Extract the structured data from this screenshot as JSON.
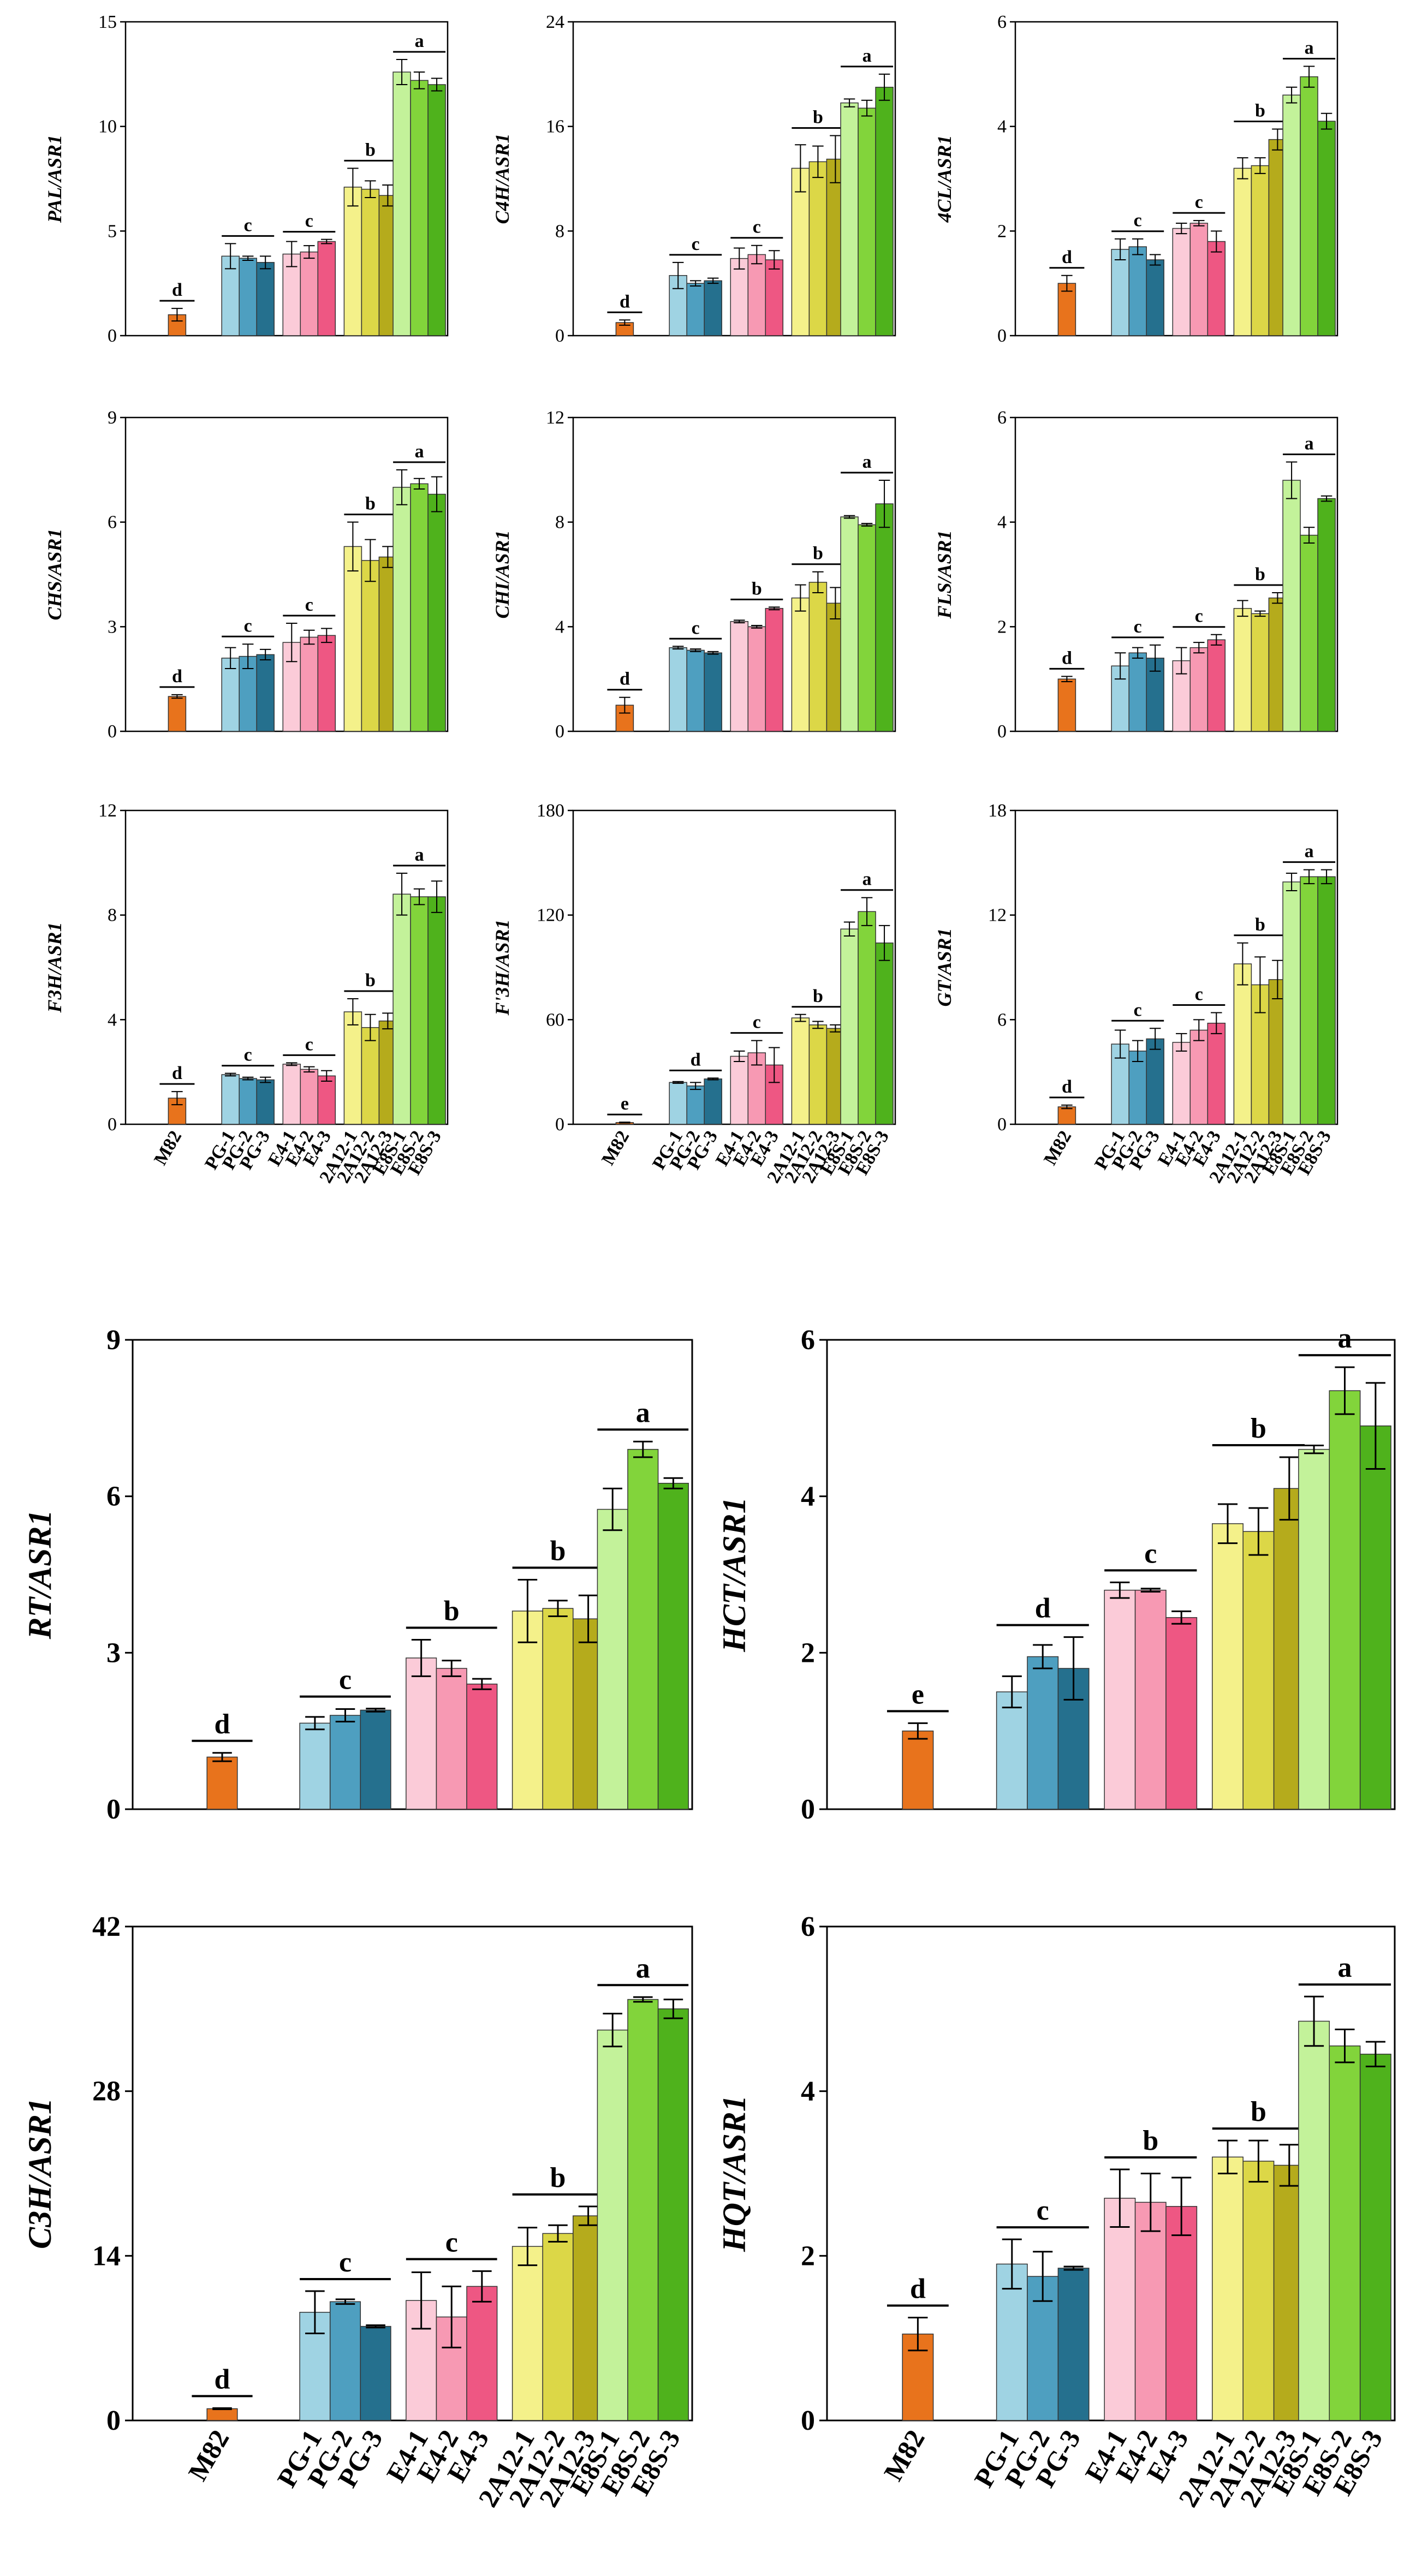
{
  "figure": {
    "groups": [
      {
        "name": "M82",
        "bars": [
          "M82"
        ],
        "colors": [
          "#e8731c"
        ]
      },
      {
        "name": "PG",
        "bars": [
          "PG-1",
          "PG-2",
          "PG-3"
        ],
        "colors": [
          "#9fd3e3",
          "#4e9fc0",
          "#25708e"
        ]
      },
      {
        "name": "E4",
        "bars": [
          "E4-1",
          "E4-2",
          "E4-3"
        ],
        "colors": [
          "#fbcbd8",
          "#f799b3",
          "#ee5783"
        ]
      },
      {
        "name": "2A12",
        "bars": [
          "2A12-1",
          "2A12-2",
          "2A12-3"
        ],
        "colors": [
          "#f4f18a",
          "#dcd747",
          "#b5ab1c"
        ]
      },
      {
        "name": "E8S",
        "bars": [
          "E8S-1",
          "E8S-2",
          "E8S-3"
        ],
        "colors": [
          "#c3f29a",
          "#82d43b",
          "#4fb21c"
        ]
      }
    ]
  },
  "chart_data": [
    {
      "type": "bar",
      "ylabel": "PAL/ASR1",
      "ylim": [
        0,
        15
      ],
      "yticks": [
        0,
        5,
        10,
        15
      ],
      "series": [
        {
          "name": "M82",
          "values": [
            1.0
          ],
          "errors": [
            0.3
          ],
          "letter": "d"
        },
        {
          "name": "PG",
          "values": [
            3.8,
            3.7,
            3.5
          ],
          "errors": [
            0.6,
            0.1,
            0.3
          ],
          "letter": "c"
        },
        {
          "name": "E4",
          "values": [
            3.9,
            4.0,
            4.5
          ],
          "errors": [
            0.6,
            0.3,
            0.1
          ],
          "letter": "c"
        },
        {
          "name": "2A12",
          "values": [
            7.1,
            7.0,
            6.7
          ],
          "errors": [
            0.9,
            0.4,
            0.5
          ],
          "letter": "b"
        },
        {
          "name": "E8S",
          "values": [
            12.6,
            12.2,
            12.0
          ],
          "errors": [
            0.6,
            0.4,
            0.3
          ],
          "letter": "a"
        }
      ]
    },
    {
      "type": "bar",
      "ylabel": "C4H/ASR1",
      "ylim": [
        0,
        24
      ],
      "yticks": [
        0,
        8,
        16,
        24
      ],
      "series": [
        {
          "name": "M82",
          "values": [
            1.0
          ],
          "errors": [
            0.2
          ],
          "letter": "d"
        },
        {
          "name": "PG",
          "values": [
            4.6,
            4.0,
            4.2
          ],
          "errors": [
            1.0,
            0.2,
            0.2
          ],
          "letter": "c"
        },
        {
          "name": "E4",
          "values": [
            5.9,
            6.2,
            5.8
          ],
          "errors": [
            0.8,
            0.7,
            0.7
          ],
          "letter": "c"
        },
        {
          "name": "2A12",
          "values": [
            12.8,
            13.3,
            13.5
          ],
          "errors": [
            1.8,
            1.2,
            1.8
          ],
          "letter": "b"
        },
        {
          "name": "E8S",
          "values": [
            17.8,
            17.4,
            19.0
          ],
          "errors": [
            0.3,
            0.6,
            1.0
          ],
          "letter": "a"
        }
      ]
    },
    {
      "type": "bar",
      "ylabel": "4CL/ASR1",
      "ylim": [
        0,
        6
      ],
      "yticks": [
        0,
        2,
        4,
        6
      ],
      "series": [
        {
          "name": "M82",
          "values": [
            1.0
          ],
          "errors": [
            0.15
          ],
          "letter": "d"
        },
        {
          "name": "PG",
          "values": [
            1.65,
            1.7,
            1.45
          ],
          "errors": [
            0.2,
            0.15,
            0.1
          ],
          "letter": "c"
        },
        {
          "name": "E4",
          "values": [
            2.05,
            2.15,
            1.8
          ],
          "errors": [
            0.1,
            0.05,
            0.2
          ],
          "letter": "c"
        },
        {
          "name": "2A12",
          "values": [
            3.2,
            3.25,
            3.75
          ],
          "errors": [
            0.2,
            0.15,
            0.2
          ],
          "letter": "b"
        },
        {
          "name": "E8S",
          "values": [
            4.6,
            4.95,
            4.1
          ],
          "errors": [
            0.15,
            0.2,
            0.15
          ],
          "letter": "a"
        }
      ]
    },
    {
      "type": "bar",
      "ylabel": "CHS/ASR1",
      "ylim": [
        0,
        9
      ],
      "yticks": [
        0,
        3,
        6,
        9
      ],
      "series": [
        {
          "name": "M82",
          "values": [
            1.0
          ],
          "errors": [
            0.05
          ],
          "letter": "d"
        },
        {
          "name": "PG",
          "values": [
            2.1,
            2.15,
            2.2
          ],
          "errors": [
            0.3,
            0.35,
            0.15
          ],
          "letter": "c"
        },
        {
          "name": "E4",
          "values": [
            2.55,
            2.7,
            2.75
          ],
          "errors": [
            0.55,
            0.2,
            0.2
          ],
          "letter": "c"
        },
        {
          "name": "2A12",
          "values": [
            5.3,
            4.9,
            5.0
          ],
          "errors": [
            0.7,
            0.6,
            0.3
          ],
          "letter": "b"
        },
        {
          "name": "E8S",
          "values": [
            7.0,
            7.1,
            6.8
          ],
          "errors": [
            0.5,
            0.15,
            0.5
          ],
          "letter": "a"
        }
      ]
    },
    {
      "type": "bar",
      "ylabel": "CHI/ASR1",
      "ylim": [
        0,
        12
      ],
      "yticks": [
        0,
        4,
        8,
        12
      ],
      "series": [
        {
          "name": "M82",
          "values": [
            1.0
          ],
          "errors": [
            0.3
          ],
          "letter": "d"
        },
        {
          "name": "PG",
          "values": [
            3.2,
            3.1,
            3.0
          ],
          "errors": [
            0.05,
            0.05,
            0.05
          ],
          "letter": "c"
        },
        {
          "name": "E4",
          "values": [
            4.2,
            4.0,
            4.7
          ],
          "errors": [
            0.05,
            0.05,
            0.05
          ],
          "letter": "b"
        },
        {
          "name": "2A12",
          "values": [
            5.1,
            5.7,
            4.9
          ],
          "errors": [
            0.5,
            0.4,
            0.6
          ],
          "letter": "b"
        },
        {
          "name": "E8S",
          "values": [
            8.2,
            7.9,
            8.7
          ],
          "errors": [
            0.05,
            0.05,
            0.9
          ],
          "letter": "a"
        }
      ]
    },
    {
      "type": "bar",
      "ylabel": "FLS/ASR1",
      "ylim": [
        0,
        6
      ],
      "yticks": [
        0,
        2,
        4,
        6
      ],
      "series": [
        {
          "name": "M82",
          "values": [
            1.0
          ],
          "errors": [
            0.05
          ],
          "letter": "d"
        },
        {
          "name": "PG",
          "values": [
            1.25,
            1.5,
            1.4
          ],
          "errors": [
            0.25,
            0.1,
            0.25
          ],
          "letter": "c"
        },
        {
          "name": "E4",
          "values": [
            1.35,
            1.6,
            1.75
          ],
          "errors": [
            0.25,
            0.1,
            0.1
          ],
          "letter": "c"
        },
        {
          "name": "2A12",
          "values": [
            2.35,
            2.25,
            2.55
          ],
          "errors": [
            0.15,
            0.05,
            0.1
          ],
          "letter": "b"
        },
        {
          "name": "E8S",
          "values": [
            4.8,
            3.75,
            4.45
          ],
          "errors": [
            0.35,
            0.15,
            0.05
          ],
          "letter": "a"
        }
      ]
    },
    {
      "type": "bar",
      "ylabel": "F3H/ASR1",
      "ylim": [
        0,
        12
      ],
      "yticks": [
        0,
        4,
        8,
        12
      ],
      "series": [
        {
          "name": "M82",
          "values": [
            1.0
          ],
          "errors": [
            0.25
          ],
          "letter": "d"
        },
        {
          "name": "PG",
          "values": [
            1.9,
            1.75,
            1.7
          ],
          "errors": [
            0.05,
            0.05,
            0.1
          ],
          "letter": "c"
        },
        {
          "name": "E4",
          "values": [
            2.3,
            2.1,
            1.85
          ],
          "errors": [
            0.05,
            0.1,
            0.2
          ],
          "letter": "c"
        },
        {
          "name": "2A12",
          "values": [
            4.3,
            3.7,
            3.95
          ],
          "errors": [
            0.5,
            0.5,
            0.3
          ],
          "letter": "b"
        },
        {
          "name": "E8S",
          "values": [
            8.8,
            8.7,
            8.7
          ],
          "errors": [
            0.8,
            0.3,
            0.6
          ],
          "letter": "a"
        }
      ]
    },
    {
      "type": "bar",
      "ylabel": "F'3H/ASR1",
      "ylim": [
        0,
        180
      ],
      "yticks": [
        0,
        60,
        120,
        180
      ],
      "series": [
        {
          "name": "M82",
          "values": [
            1.0
          ],
          "errors": [
            0.2
          ],
          "letter": "e"
        },
        {
          "name": "PG",
          "values": [
            24,
            22,
            26
          ],
          "errors": [
            0.5,
            2,
            0.5
          ],
          "letter": "d"
        },
        {
          "name": "E4",
          "values": [
            39,
            41,
            34
          ],
          "errors": [
            3,
            7,
            10
          ],
          "letter": "c"
        },
        {
          "name": "2A12",
          "values": [
            61,
            57,
            55
          ],
          "errors": [
            2,
            2,
            2
          ],
          "letter": "b"
        },
        {
          "name": "E8S",
          "values": [
            112,
            122,
            104
          ],
          "errors": [
            4,
            8,
            10
          ],
          "letter": "a"
        }
      ]
    },
    {
      "type": "bar",
      "ylabel": "GT/ASR1",
      "ylim": [
        0,
        18
      ],
      "yticks": [
        0,
        6,
        12,
        18
      ],
      "series": [
        {
          "name": "M82",
          "values": [
            1.0
          ],
          "errors": [
            0.1
          ],
          "letter": "d"
        },
        {
          "name": "PG",
          "values": [
            4.6,
            4.2,
            4.9
          ],
          "errors": [
            0.8,
            0.6,
            0.6
          ],
          "letter": "c"
        },
        {
          "name": "E4",
          "values": [
            4.7,
            5.4,
            5.8
          ],
          "errors": [
            0.5,
            0.6,
            0.6
          ],
          "letter": "c"
        },
        {
          "name": "2A12",
          "values": [
            9.2,
            8.0,
            8.3
          ],
          "errors": [
            1.2,
            1.6,
            1.1
          ],
          "letter": "b"
        },
        {
          "name": "E8S",
          "values": [
            13.9,
            14.2,
            14.2
          ],
          "errors": [
            0.5,
            0.4,
            0.4
          ],
          "letter": "a"
        }
      ]
    },
    {
      "type": "bar",
      "ylabel": "RT/ASR1",
      "ylim": [
        0,
        9
      ],
      "yticks": [
        0,
        3,
        6,
        9
      ],
      "series": [
        {
          "name": "M82",
          "values": [
            1.0
          ],
          "errors": [
            0.08
          ],
          "letter": "d"
        },
        {
          "name": "PG",
          "values": [
            1.65,
            1.8,
            1.9
          ],
          "errors": [
            0.12,
            0.12,
            0.03
          ],
          "letter": "c"
        },
        {
          "name": "E4",
          "values": [
            2.9,
            2.7,
            2.4
          ],
          "errors": [
            0.35,
            0.15,
            0.1
          ],
          "letter": "b"
        },
        {
          "name": "2A12",
          "values": [
            3.8,
            3.85,
            3.65
          ],
          "errors": [
            0.6,
            0.15,
            0.45
          ],
          "letter": "b"
        },
        {
          "name": "E8S",
          "values": [
            5.75,
            6.9,
            6.25
          ],
          "errors": [
            0.4,
            0.15,
            0.1
          ],
          "letter": "a"
        }
      ]
    },
    {
      "type": "bar",
      "ylabel": "HCT/ASR1",
      "ylim": [
        0,
        6
      ],
      "yticks": [
        0,
        2,
        4,
        6
      ],
      "series": [
        {
          "name": "M82",
          "values": [
            1.0
          ],
          "errors": [
            0.1
          ],
          "letter": "e"
        },
        {
          "name": "PG",
          "values": [
            1.5,
            1.95,
            1.8
          ],
          "errors": [
            0.2,
            0.15,
            0.4
          ],
          "letter": "d"
        },
        {
          "name": "E4",
          "values": [
            2.8,
            2.8,
            2.45
          ],
          "errors": [
            0.1,
            0.02,
            0.08
          ],
          "letter": "c"
        },
        {
          "name": "2A12",
          "values": [
            3.65,
            3.55,
            4.1
          ],
          "errors": [
            0.25,
            0.3,
            0.4
          ],
          "letter": "b"
        },
        {
          "name": "E8S",
          "values": [
            4.6,
            5.35,
            4.9
          ],
          "errors": [
            0.05,
            0.3,
            0.55
          ],
          "letter": "a"
        }
      ]
    },
    {
      "type": "bar",
      "ylabel": "C3H/ASR1",
      "ylim": [
        0,
        42
      ],
      "yticks": [
        0,
        14,
        28,
        42
      ],
      "series": [
        {
          "name": "M82",
          "values": [
            1.0
          ],
          "errors": [
            0.05
          ],
          "letter": "d"
        },
        {
          "name": "PG",
          "values": [
            9.2,
            10.1,
            8.0
          ],
          "errors": [
            1.8,
            0.2,
            0.1
          ],
          "letter": "c"
        },
        {
          "name": "E4",
          "values": [
            10.2,
            8.8,
            11.4
          ],
          "errors": [
            2.4,
            2.6,
            1.3
          ],
          "letter": "c"
        },
        {
          "name": "2A12",
          "values": [
            14.8,
            15.9,
            17.4
          ],
          "errors": [
            1.6,
            0.7,
            0.8
          ],
          "letter": "b"
        },
        {
          "name": "E8S",
          "values": [
            33.2,
            35.8,
            35.0
          ],
          "errors": [
            1.4,
            0.2,
            0.8
          ],
          "letter": "a"
        }
      ]
    },
    {
      "type": "bar",
      "ylabel": "HQT/ASR1",
      "ylim": [
        0,
        6
      ],
      "yticks": [
        0,
        2,
        4,
        6
      ],
      "series": [
        {
          "name": "M82",
          "values": [
            1.05
          ],
          "errors": [
            0.2
          ],
          "letter": "d"
        },
        {
          "name": "PG",
          "values": [
            1.9,
            1.75,
            1.85
          ],
          "errors": [
            0.3,
            0.3,
            0.02
          ],
          "letter": "c"
        },
        {
          "name": "E4",
          "values": [
            2.7,
            2.65,
            2.6
          ],
          "errors": [
            0.35,
            0.35,
            0.35
          ],
          "letter": "b"
        },
        {
          "name": "2A12",
          "values": [
            3.2,
            3.15,
            3.1
          ],
          "errors": [
            0.2,
            0.25,
            0.25
          ],
          "letter": "b"
        },
        {
          "name": "E8S",
          "values": [
            4.85,
            4.55,
            4.45
          ],
          "errors": [
            0.3,
            0.2,
            0.15
          ],
          "letter": "a"
        }
      ]
    }
  ]
}
